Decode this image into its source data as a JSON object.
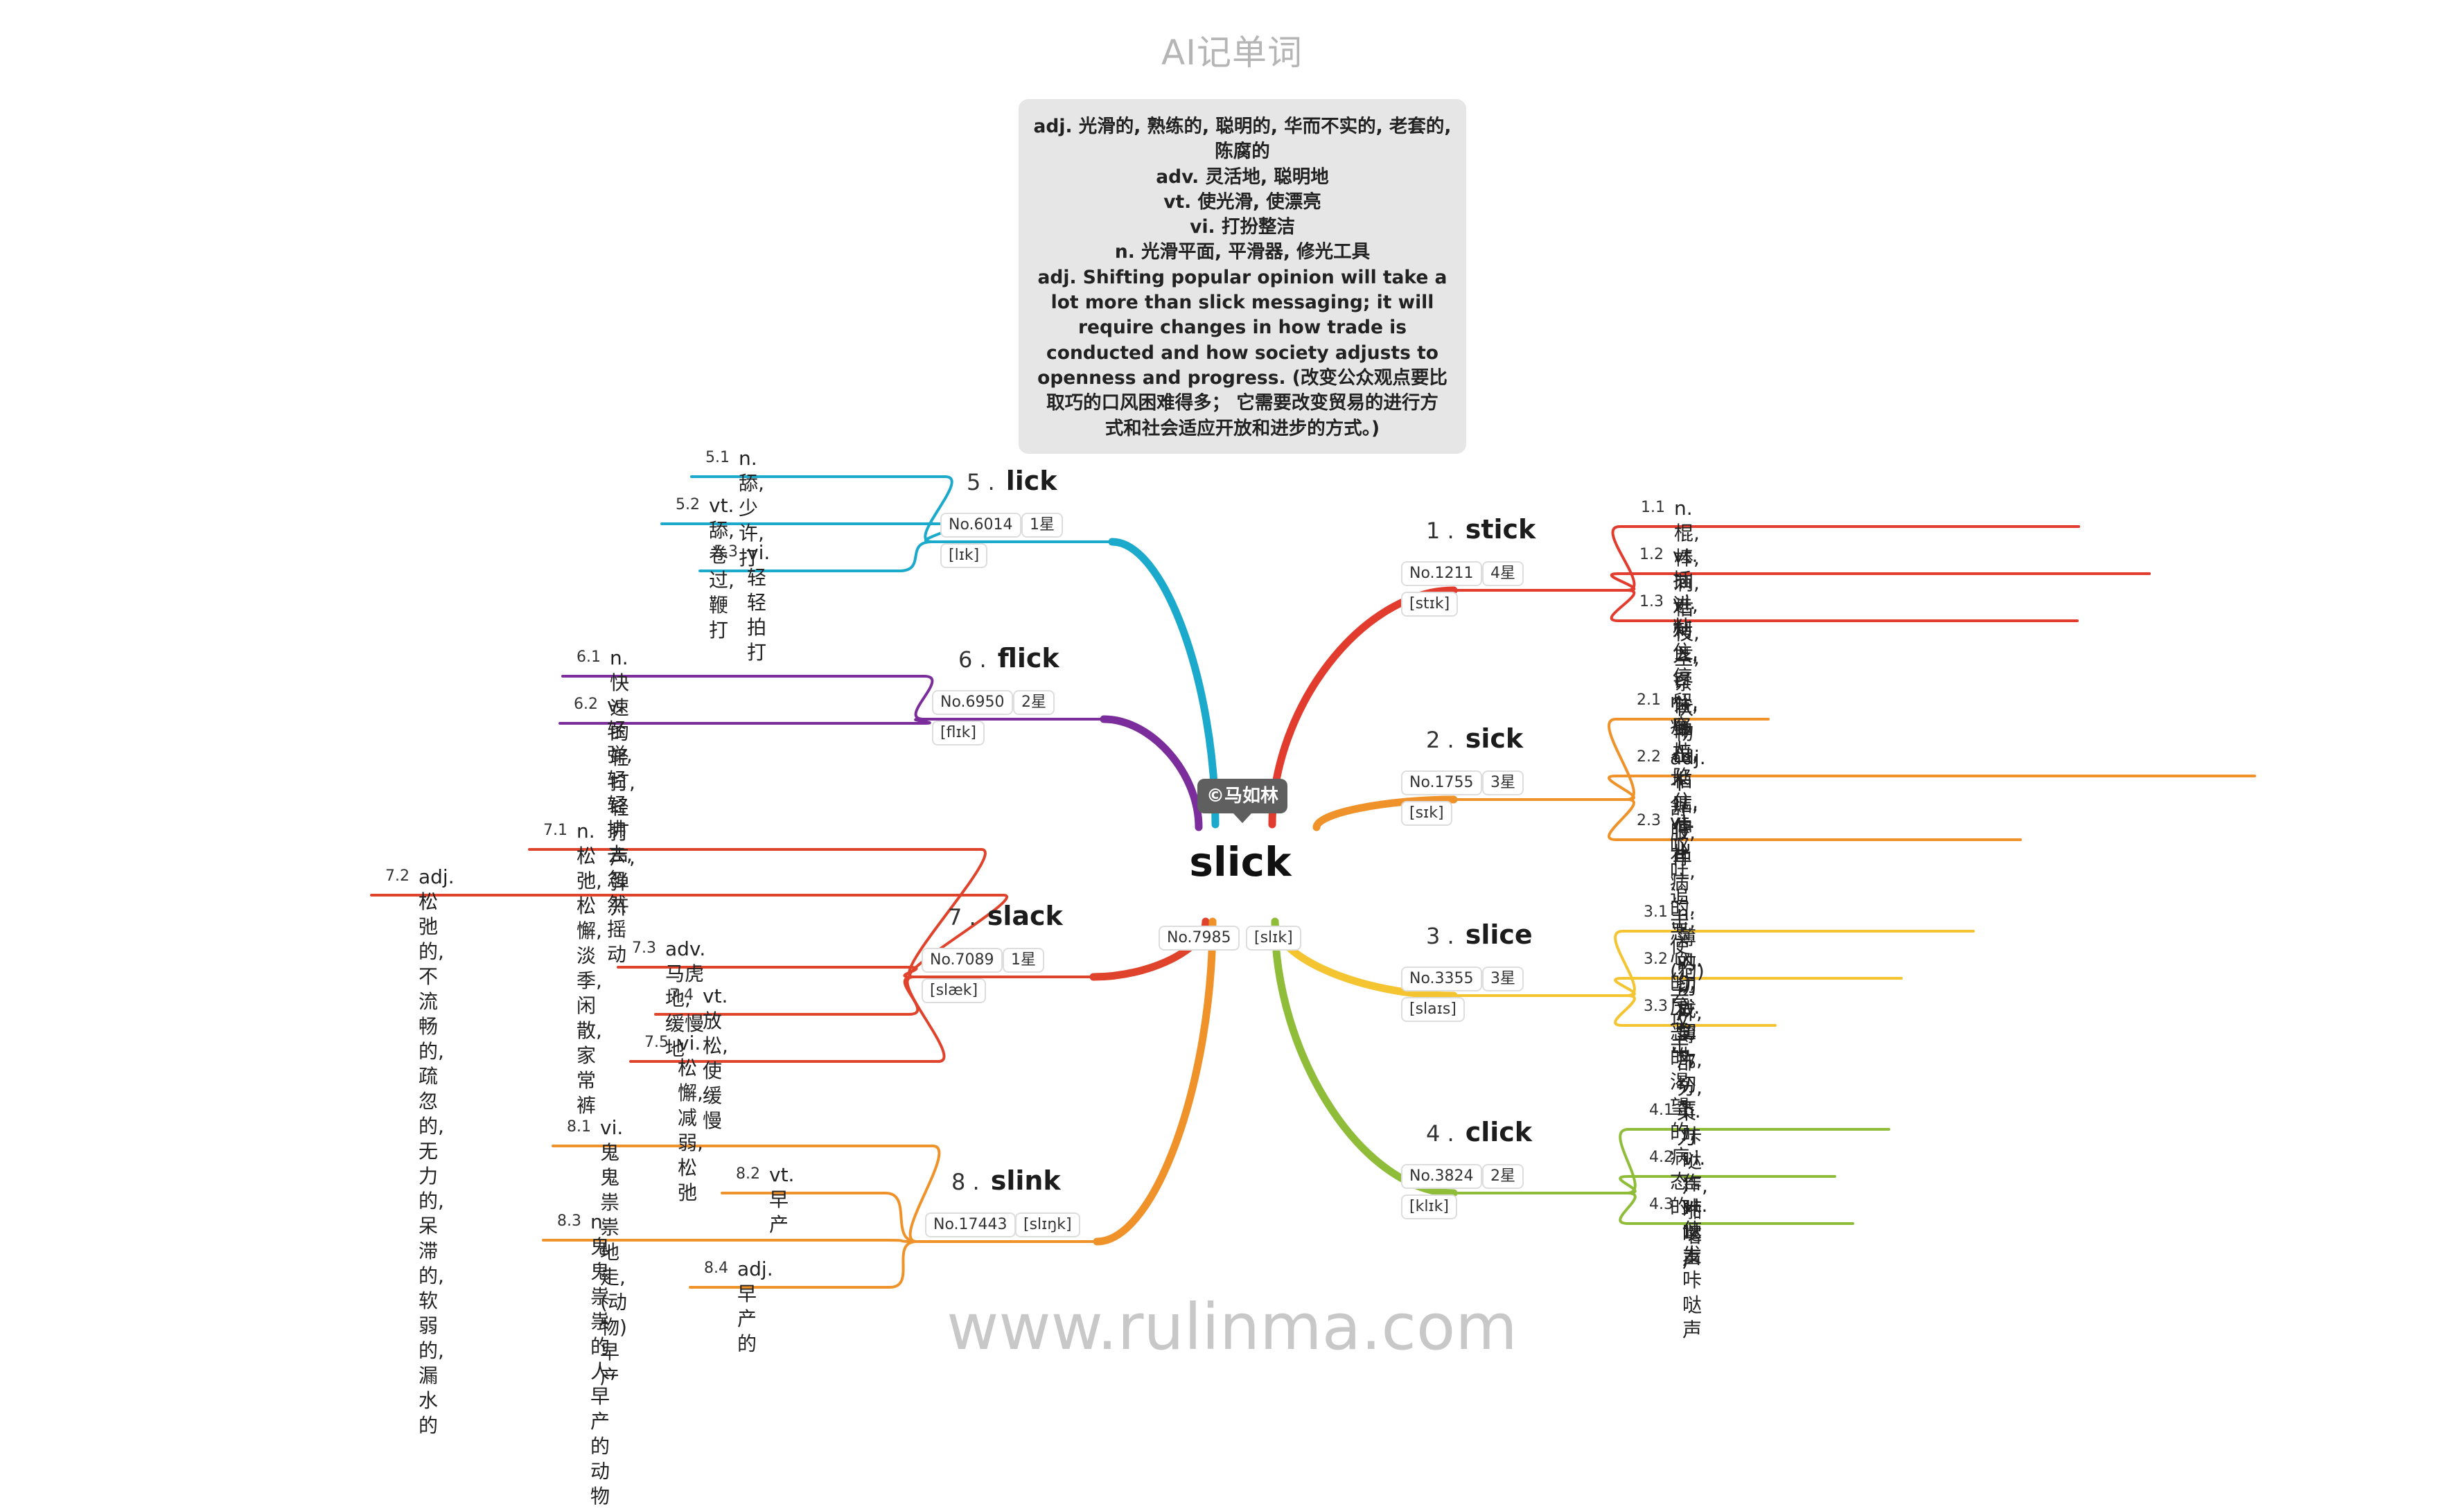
{
  "header": {
    "title": "AI记单词"
  },
  "footer": {
    "url": "www.rulinma.com"
  },
  "center": {
    "badge": "©马如林",
    "word": "slick",
    "number": "No.7985",
    "phonetic": "[slɪk]"
  },
  "note": {
    "lines": [
      "adj. 光滑的, 熟练的, 聪明的, 华而不实的, 老套的,\n陈腐的",
      "adv. 灵活地, 聪明地",
      "vt. 使光滑, 使漂亮",
      "vi. 打扮整洁",
      "n. 光滑平面, 平滑器, 修光工具",
      "adj. Shifting popular opinion will take a\nlot more than slick messaging; it will\nrequire changes in how trade is\nconducted and how society adjusts to\nopenness and progress. (改变公众观点要比\n取巧的口风困难得多； 它需要改变贸易的进行方\n式和社会适应开放和进步的方式。)"
    ]
  },
  "branches": [
    {
      "id": "1",
      "word": "stick",
      "number": "No.1211",
      "stars": "4星",
      "phonetic": "[stɪk]",
      "color": "#e23c2e",
      "senses": [
        {
          "idx": "1.1",
          "text": "n. 棍, 棒, 刺, 枯枝, 茎, 条状物"
        },
        {
          "idx": "1.2",
          "text": "vt. 插进, 刺入, 钉住, 伸出, 粘贴, 停止"
        },
        {
          "idx": "1.3",
          "text": "vi. 粘住, 停留, 坚持, 陷住, 伸出"
        }
      ]
    },
    {
      "id": "2",
      "word": "sick",
      "number": "No.1755",
      "stars": "3星",
      "phonetic": "[sɪk]",
      "color": "#f0922a",
      "senses": [
        {
          "idx": "2.1",
          "text": "n. 病人"
        },
        {
          "idx": "2.2",
          "text": "adj. 不舒服, 有病的, 恶心的, 厌恶的, 渴望的, 病态\n的"
        },
        {
          "idx": "2.3",
          "text": "vt. 呕吐, 追击, 使(狗)去攻击"
        }
      ]
    },
    {
      "id": "3",
      "word": "slice",
      "number": "No.3355",
      "stars": "3星",
      "phonetic": "[slaɪs]",
      "color": "#f5c431",
      "senses": [
        {
          "idx": "3.1",
          "text": "n. 薄的切片, 一部分, 菜刀"
        },
        {
          "idx": "3.2",
          "text": "vt. 切成薄片, 切下"
        },
        {
          "idx": "3.3",
          "text": "vi. 切"
        }
      ]
    },
    {
      "id": "4",
      "word": "click",
      "number": "No.3824",
      "stars": "2星",
      "phonetic": "[klɪk]",
      "color": "#8fbd3a",
      "senses": [
        {
          "idx": "4.1",
          "text": "n. 咔哒声, 啪嗒声"
        },
        {
          "idx": "4.2",
          "text": "vi. 作咔哒声"
        },
        {
          "idx": "4.3",
          "text": "vt. 使发咔哒声"
        }
      ]
    },
    {
      "id": "5",
      "word": "lick",
      "number": "No.6014",
      "stars": "1星",
      "phonetic": "[lɪk]",
      "color": "#1ba9cc",
      "senses": [
        {
          "idx": "5.1",
          "text": "n. 舔, 少许, 打"
        },
        {
          "idx": "5.2",
          "text": "vt. 舔, 卷过, 鞭打"
        },
        {
          "idx": "5.3",
          "text": "vi. 轻轻拍打"
        }
      ]
    },
    {
      "id": "6",
      "word": "flick",
      "number": "No.6950",
      "stars": "2星",
      "phonetic": "[flɪk]",
      "color": "#7b2d9b",
      "senses": [
        {
          "idx": "6.1",
          "text": "n. 快速的轻打, 轻打声, 弹开"
        },
        {
          "idx": "6.2",
          "text": "v. 轻弹, 轻轻拂去, 忽然摇动"
        }
      ]
    },
    {
      "id": "7",
      "word": "slack",
      "number": "No.7089",
      "stars": "1星",
      "phonetic": "[slæk]",
      "color": "#e0432c",
      "senses": [
        {
          "idx": "7.1",
          "text": "n. 松弛, 松懈, 淡季, 闲散, 家常裤"
        },
        {
          "idx": "7.2",
          "text": "adj. 松弛的, 不流畅的, 疏忽的, 无力的, 呆滞的, 软\n弱的, 漏水的"
        },
        {
          "idx": "7.3",
          "text": "adv. 马虎地, 缓慢地"
        },
        {
          "idx": "7.4",
          "text": "vt. 放松, 使缓慢"
        },
        {
          "idx": "7.5",
          "text": "vi. 松懈, 减弱, 松弛"
        }
      ]
    },
    {
      "id": "8",
      "word": "slink",
      "number": "No.17443",
      "stars": "",
      "phonetic": "[slɪŋk]",
      "color": "#f0922a",
      "senses": [
        {
          "idx": "8.1",
          "text": "vi. 鬼鬼祟祟地走, (动物)早产"
        },
        {
          "idx": "8.2",
          "text": "vt. 早产"
        },
        {
          "idx": "8.3",
          "text": "n. 鬼鬼祟祟的人, 早产的动物"
        },
        {
          "idx": "8.4",
          "text": "adj. 早产的"
        }
      ]
    }
  ]
}
